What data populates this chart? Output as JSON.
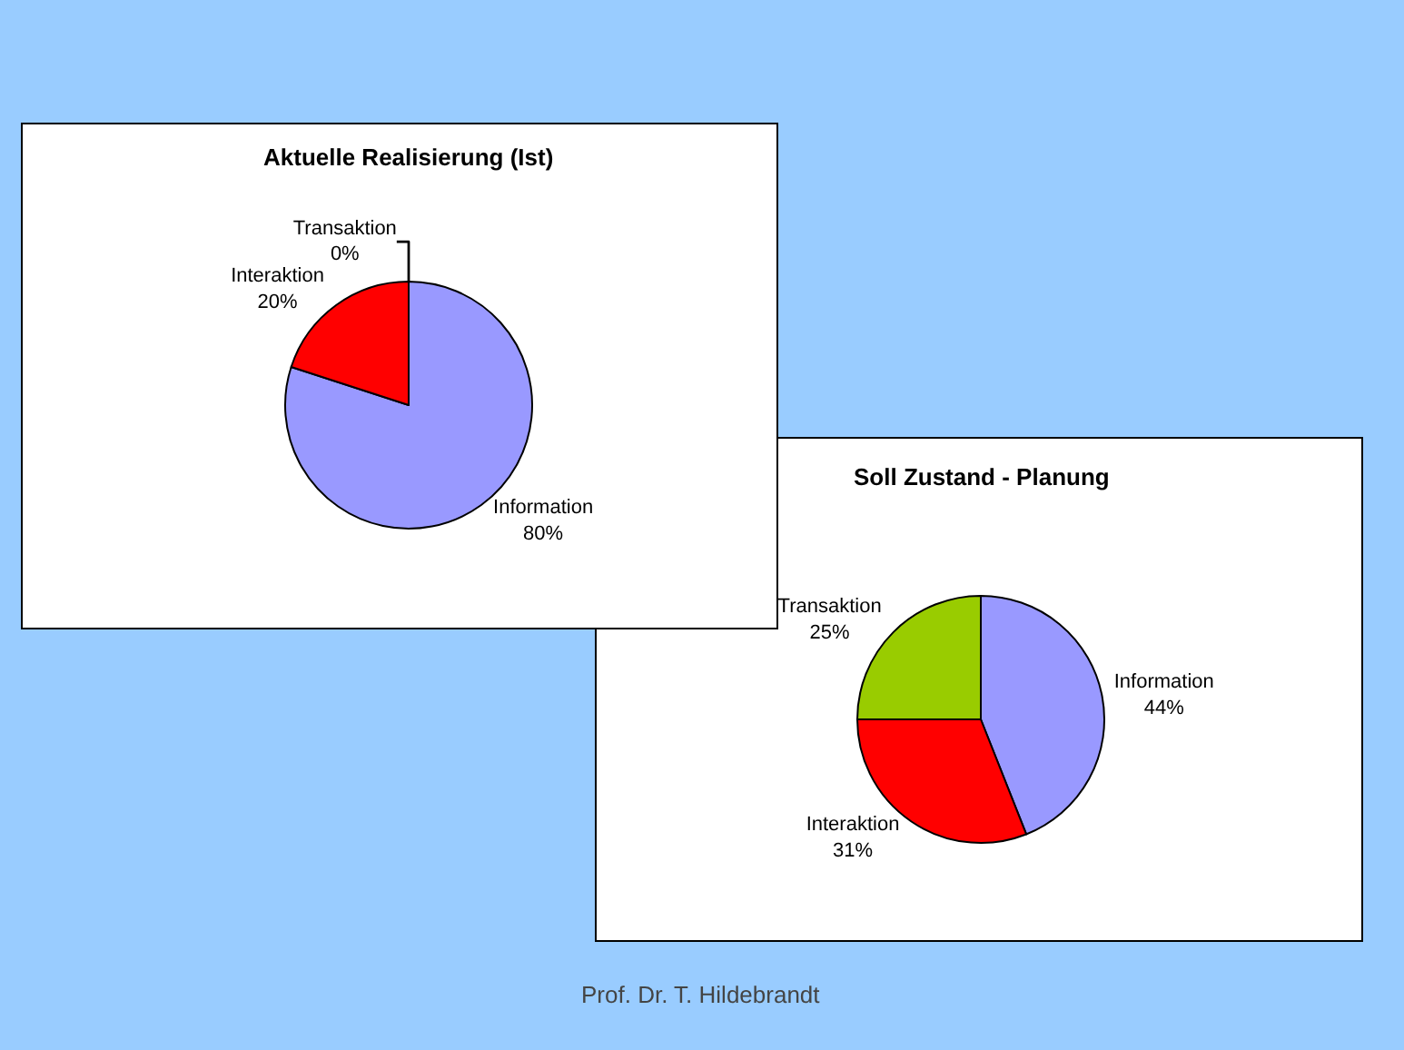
{
  "chart_data": [
    {
      "type": "pie",
      "title": "Aktuelle Realisierung (Ist)",
      "categories": [
        "Information",
        "Interaktion",
        "Transaktion"
      ],
      "values": [
        80,
        20,
        0
      ],
      "colors": [
        "#9999ff",
        "#ff0000",
        "#99cc00"
      ],
      "value_labels": [
        "80%",
        "20%",
        "0%"
      ]
    },
    {
      "type": "pie",
      "title": "Soll Zustand - Planung",
      "categories": [
        "Information",
        "Interaktion",
        "Transaktion"
      ],
      "values": [
        44,
        31,
        25
      ],
      "colors": [
        "#9999ff",
        "#ff0000",
        "#99cc00"
      ],
      "value_labels": [
        "44%",
        "31%",
        "25%"
      ],
      "annotations": [
        "Prof. Dr. T. Hildebrandt"
      ]
    }
  ]
}
